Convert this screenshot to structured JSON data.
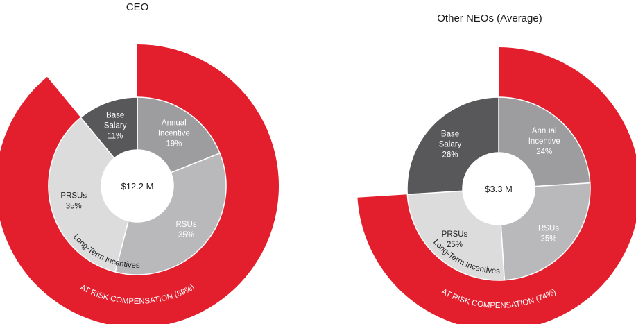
{
  "chart_data": [
    {
      "type": "pie",
      "title": "CEO",
      "center_label": "$12.2 M",
      "slices": [
        {
          "name": "Base\nSalary",
          "value": 11,
          "label": "11%",
          "color": "#58585a"
        },
        {
          "name": "Annual\nIncentive",
          "value": 19,
          "label": "19%",
          "color": "#9d9d9f"
        },
        {
          "name": "RSUs",
          "value": 35,
          "label": "35%",
          "color": "#b9b9bb"
        },
        {
          "name": "PRSUs",
          "value": 35,
          "label": "35%",
          "color": "#dcdcdd"
        }
      ],
      "group_label": "Long-Term Incentives",
      "at_risk": {
        "label": "AT RISK COMPENSATION (89%)",
        "value": 89,
        "color": "#e31f2d"
      }
    },
    {
      "type": "pie",
      "title": "Other NEOs (Average)",
      "center_label": "$3.3 M",
      "slices": [
        {
          "name": "Base\nSalary",
          "value": 26,
          "label": "26%",
          "color": "#58585a"
        },
        {
          "name": "Annual\nIncentive",
          "value": 24,
          "label": "24%",
          "color": "#9d9d9f"
        },
        {
          "name": "RSUs",
          "value": 25,
          "label": "25%",
          "color": "#b9b9bb"
        },
        {
          "name": "PRSUs",
          "value": 25,
          "label": "25%",
          "color": "#dcdcdd"
        }
      ],
      "group_label": "Long-Term Incentives",
      "at_risk": {
        "label": "AT RISK COMPENSATION (74%)",
        "value": 74,
        "color": "#e31f2d"
      }
    }
  ]
}
